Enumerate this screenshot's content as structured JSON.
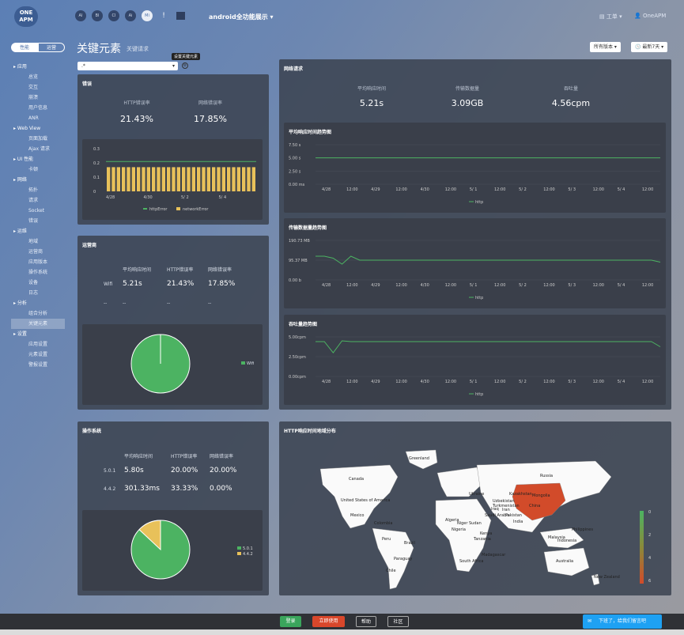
{
  "brand": {
    "logo": "ONE APM"
  },
  "apps": [
    "AI",
    "BI",
    "CI",
    "Ai",
    "Mi",
    "!",
    ""
  ],
  "app_name": "android全功能展示",
  "top_right": {
    "work": "工单",
    "user": "OneAPM"
  },
  "seg": {
    "perf": "性能",
    "ops": "运营"
  },
  "nav": [
    {
      "t": "g",
      "label": "应用"
    },
    {
      "t": "i",
      "label": "总览"
    },
    {
      "t": "i",
      "label": "交互"
    },
    {
      "t": "i",
      "label": "崩溃"
    },
    {
      "t": "i",
      "label": "用户信息"
    },
    {
      "t": "i",
      "label": "ANR"
    },
    {
      "t": "g",
      "label": "Web View"
    },
    {
      "t": "i",
      "label": "页面加载"
    },
    {
      "t": "i",
      "label": "Ajax 请求"
    },
    {
      "t": "g",
      "label": "UI 性能"
    },
    {
      "t": "i",
      "label": "卡顿"
    },
    {
      "t": "g",
      "label": "网络"
    },
    {
      "t": "i",
      "label": "拓扑"
    },
    {
      "t": "i",
      "label": "请求"
    },
    {
      "t": "i",
      "label": "Socket"
    },
    {
      "t": "i",
      "label": "错误"
    },
    {
      "t": "g",
      "label": "运维"
    },
    {
      "t": "i",
      "label": "地域"
    },
    {
      "t": "i",
      "label": "运营商"
    },
    {
      "t": "i",
      "label": "应用版本"
    },
    {
      "t": "i",
      "label": "操作系统"
    },
    {
      "t": "i",
      "label": "设备"
    },
    {
      "t": "i",
      "label": "日志"
    },
    {
      "t": "g",
      "label": "分析"
    },
    {
      "t": "i",
      "label": "组合分析"
    },
    {
      "t": "i",
      "label": "关键元素",
      "sel": true
    },
    {
      "t": "g",
      "label": "设置"
    },
    {
      "t": "i",
      "label": "应用设置"
    },
    {
      "t": "i",
      "label": "元素设置"
    },
    {
      "t": "i",
      "label": "警报设置"
    }
  ],
  "page": {
    "title": "关键元素",
    "subtitle": "关键请求",
    "version_btn": "所有版本",
    "time_btn": "最新7天",
    "select": ".*",
    "tooltip": "设置关键元素"
  },
  "errors": {
    "title": "错误",
    "col1": "HTTP错误率",
    "col2": "网络错误率",
    "v1": "21.43%",
    "v2": "17.85%",
    "chart": {
      "ylabels": [
        "0.3",
        "0.2",
        "0.1",
        "0"
      ],
      "xlabels": [
        "4/28",
        "4/30",
        "5/ 2",
        "5/ 4"
      ],
      "legend1": "httpError",
      "legend2": "networkError",
      "bar_value": 0.17,
      "line_value": 0.21,
      "bars": 30
    }
  },
  "carrier": {
    "title": "运营商",
    "h1": "平均响应时间",
    "h2": "HTTP错误率",
    "h3": "网络错误率",
    "rows": [
      {
        "name": "Wifi",
        "a": "5.21s",
        "b": "21.43%",
        "c": "17.85%"
      },
      {
        "name": "--",
        "a": "--",
        "b": "--",
        "c": "--"
      }
    ],
    "legend": "Wifi"
  },
  "os": {
    "title": "操作系统",
    "h1": "平均响应时间",
    "h2": "HTTP错误率",
    "h3": "网络错误率",
    "rows": [
      {
        "name": "5.0.1",
        "a": "5.80s",
        "b": "20.00%",
        "c": "20.00%"
      },
      {
        "name": "4.4.2",
        "a": "301.33ms",
        "b": "33.33%",
        "c": "0.00%"
      }
    ],
    "legend1": "5.0.1",
    "legend2": "4.4.2",
    "share": 0.13
  },
  "network": {
    "title": "网络请求",
    "h1": "平均响应时间",
    "h2": "传输数据量",
    "h3": "吞吐量",
    "v1": "5.21s",
    "v2": "3.09GB",
    "v3": "4.56cpm",
    "xlabels": [
      "4/28",
      "12:00",
      "4/29",
      "12:00",
      "4/30",
      "12:00",
      "5/ 1",
      "12:00",
      "5/ 2",
      "12:00",
      "5/ 3",
      "12:00",
      "5/ 4",
      "12:00"
    ],
    "legend": "http",
    "c1": {
      "title": "平均响应时间趋势图",
      "ylabels": [
        "7.50 s",
        "5.00 s",
        "2.50 s",
        "0.00 ms"
      ]
    },
    "c2": {
      "title": "传输数据量趋势图",
      "ylabels": [
        "190.73 MB",
        "95.37 MB",
        "0.00 b"
      ]
    },
    "c3": {
      "title": "吞吐量趋势图",
      "ylabels": [
        "5.00cpm",
        "2.50cpm",
        "0.00cpm"
      ]
    }
  },
  "map": {
    "title": "HTTP响应时间地域分布",
    "scale": [
      "0",
      "2",
      "4",
      "6"
    ],
    "labels": [
      "Greenland",
      "Canada",
      "United States of America",
      "Russia",
      "Kazakhstan",
      "Mongolia",
      "China",
      "India",
      "Brazil",
      "Australia",
      "Algeria",
      "Sudan",
      "Nigeria",
      "Ukraine",
      "Uzbekistan",
      "Colombia",
      "Peru",
      "Paraguay",
      "Chile",
      "South Africa",
      "Madagascar",
      "Mexico",
      "Niger",
      "Tanzania",
      "Kenya",
      "Turkmenistan",
      "Indonesia",
      "Philippines",
      "Malaysia",
      "New Zealand",
      "Saudi Arabia",
      "Iran",
      "Iraq",
      "Pakistan"
    ]
  },
  "footer": {
    "b1": "登录",
    "b2": "立即使用",
    "b3": "帮助",
    "b4": "社区",
    "chat": "下班了，给我们留言吧"
  },
  "colors": {
    "green": "#4cb362",
    "yellow": "#e8c15a",
    "red": "#d24b2a"
  }
}
